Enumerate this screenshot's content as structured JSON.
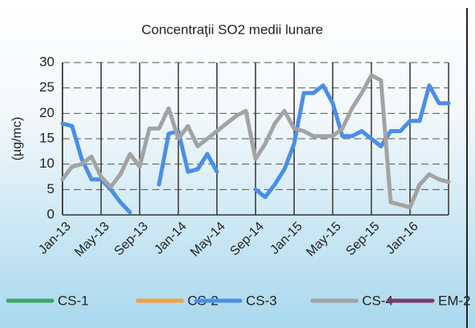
{
  "chart_data": {
    "type": "line",
    "title": "Concentraţii SO2  medii  lunare",
    "y_label": "(µg/mc)",
    "categories": [
      "Jan-13",
      null,
      null,
      null,
      "May-13",
      null,
      null,
      null,
      "Sep-13",
      null,
      null,
      null,
      "Jan-14",
      null,
      null,
      null,
      "May-14",
      null,
      null,
      null,
      "Sep-14",
      null,
      null,
      null,
      "Jan-15",
      null,
      null,
      null,
      "May-15",
      null,
      null,
      null,
      "Sep-15",
      null,
      null,
      null,
      "Jan-16",
      null,
      null,
      null,
      null
    ],
    "series": [
      {
        "name": "CS-1",
        "color": "#3aa66a",
        "values": [
          null,
          null,
          null,
          null,
          null,
          null,
          null,
          null,
          null,
          null,
          null,
          null,
          null,
          null,
          null,
          null,
          null,
          null,
          null,
          null,
          null,
          null,
          null,
          null,
          null,
          null,
          null,
          null,
          null,
          null,
          null,
          null,
          null,
          null,
          null,
          null,
          null,
          null,
          null,
          null,
          null
        ]
      },
      {
        "name": "CS-2",
        "color": "#f0a040",
        "values": [
          null,
          null,
          null,
          null,
          null,
          null,
          null,
          null,
          null,
          null,
          null,
          null,
          null,
          null,
          null,
          null,
          null,
          null,
          null,
          null,
          null,
          null,
          null,
          null,
          null,
          null,
          null,
          null,
          null,
          null,
          null,
          null,
          null,
          null,
          null,
          null,
          null,
          null,
          null,
          null,
          null
        ]
      },
      {
        "name": "CS-3",
        "color": "#4a8ee8",
        "values": [
          18,
          17.5,
          11,
          7,
          7,
          5,
          2.5,
          0.5,
          null,
          null,
          6,
          16,
          16.5,
          8.5,
          9,
          12,
          8.5,
          null,
          null,
          null,
          5,
          3.5,
          6,
          9,
          14,
          24,
          24,
          25.5,
          22,
          15.5,
          15.5,
          16.5,
          15,
          13.5,
          16.5,
          16.5,
          18.5,
          18.5,
          25.5,
          22,
          22
        ]
      },
      {
        "name": "CS-4",
        "color": "#a3a3a3",
        "values": [
          7,
          9.5,
          10,
          11.5,
          7.5,
          5.5,
          8,
          12,
          9.5,
          17,
          17,
          21,
          15,
          17.5,
          13.5,
          15,
          16.5,
          18,
          19.5,
          20.5,
          11,
          14,
          18,
          20.5,
          17,
          16.5,
          15.5,
          15.5,
          15.5,
          17,
          21,
          24,
          27.5,
          26.5,
          2.5,
          2,
          1.5,
          6,
          8,
          7,
          6.5
        ]
      },
      {
        "name": "EM-2",
        "color": "#7a3a6a",
        "values": [
          null,
          null,
          null,
          null,
          null,
          null,
          null,
          null,
          null,
          null,
          null,
          null,
          null,
          null,
          null,
          null,
          null,
          null,
          null,
          null,
          null,
          null,
          null,
          null,
          null,
          null,
          null,
          null,
          null,
          null,
          null,
          null,
          null,
          null,
          null,
          null,
          null,
          null,
          null,
          null,
          null
        ]
      }
    ],
    "ylim": [
      0,
      30
    ],
    "yticks": [
      0,
      5,
      10,
      15,
      20,
      25,
      30
    ],
    "grid": true
  }
}
